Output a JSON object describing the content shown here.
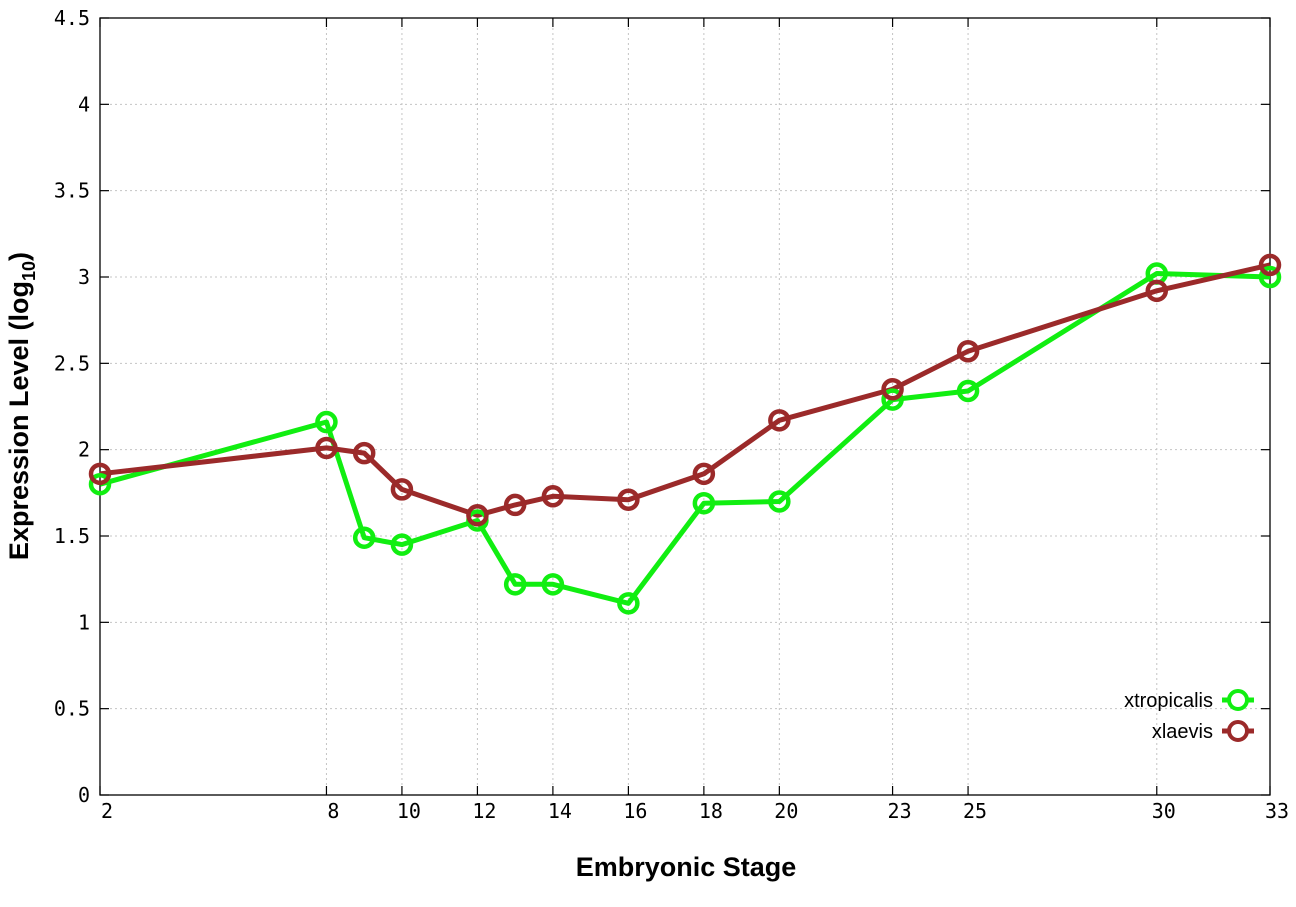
{
  "chart_data": {
    "type": "line",
    "title": "",
    "xlabel": "Embryonic Stage",
    "ylabel": {
      "main": "Expression Level (log",
      "sub": "10",
      "close": ")"
    },
    "x_ticks": [
      2,
      8,
      10,
      12,
      14,
      16,
      18,
      20,
      23,
      25,
      30,
      33
    ],
    "y_ticks": [
      "0",
      "0.5",
      "1",
      "1.5",
      "2",
      "2.5",
      "3",
      "3.5",
      "4",
      "4.5"
    ],
    "xlim": [
      2,
      33
    ],
    "ylim": [
      0,
      4.5
    ],
    "grid": true,
    "legend_position": "bottom-right",
    "series": [
      {
        "name": "xtropicalis",
        "color": "#11ee11",
        "x": [
          2,
          8,
          9,
          10,
          12,
          13,
          14,
          16,
          18,
          20,
          23,
          25,
          30,
          33
        ],
        "y": [
          1.8,
          2.16,
          1.49,
          1.45,
          1.59,
          1.22,
          1.22,
          1.11,
          1.69,
          1.7,
          2.29,
          2.34,
          3.02,
          3.0
        ]
      },
      {
        "name": "xlaevis",
        "color": "#9b2a2a",
        "x": [
          2,
          8,
          9,
          10,
          12,
          13,
          14,
          16,
          18,
          20,
          23,
          25,
          30,
          33
        ],
        "y": [
          1.86,
          2.01,
          1.98,
          1.77,
          1.62,
          1.68,
          1.73,
          1.71,
          1.86,
          2.17,
          2.35,
          2.57,
          2.92,
          3.07
        ]
      }
    ]
  }
}
